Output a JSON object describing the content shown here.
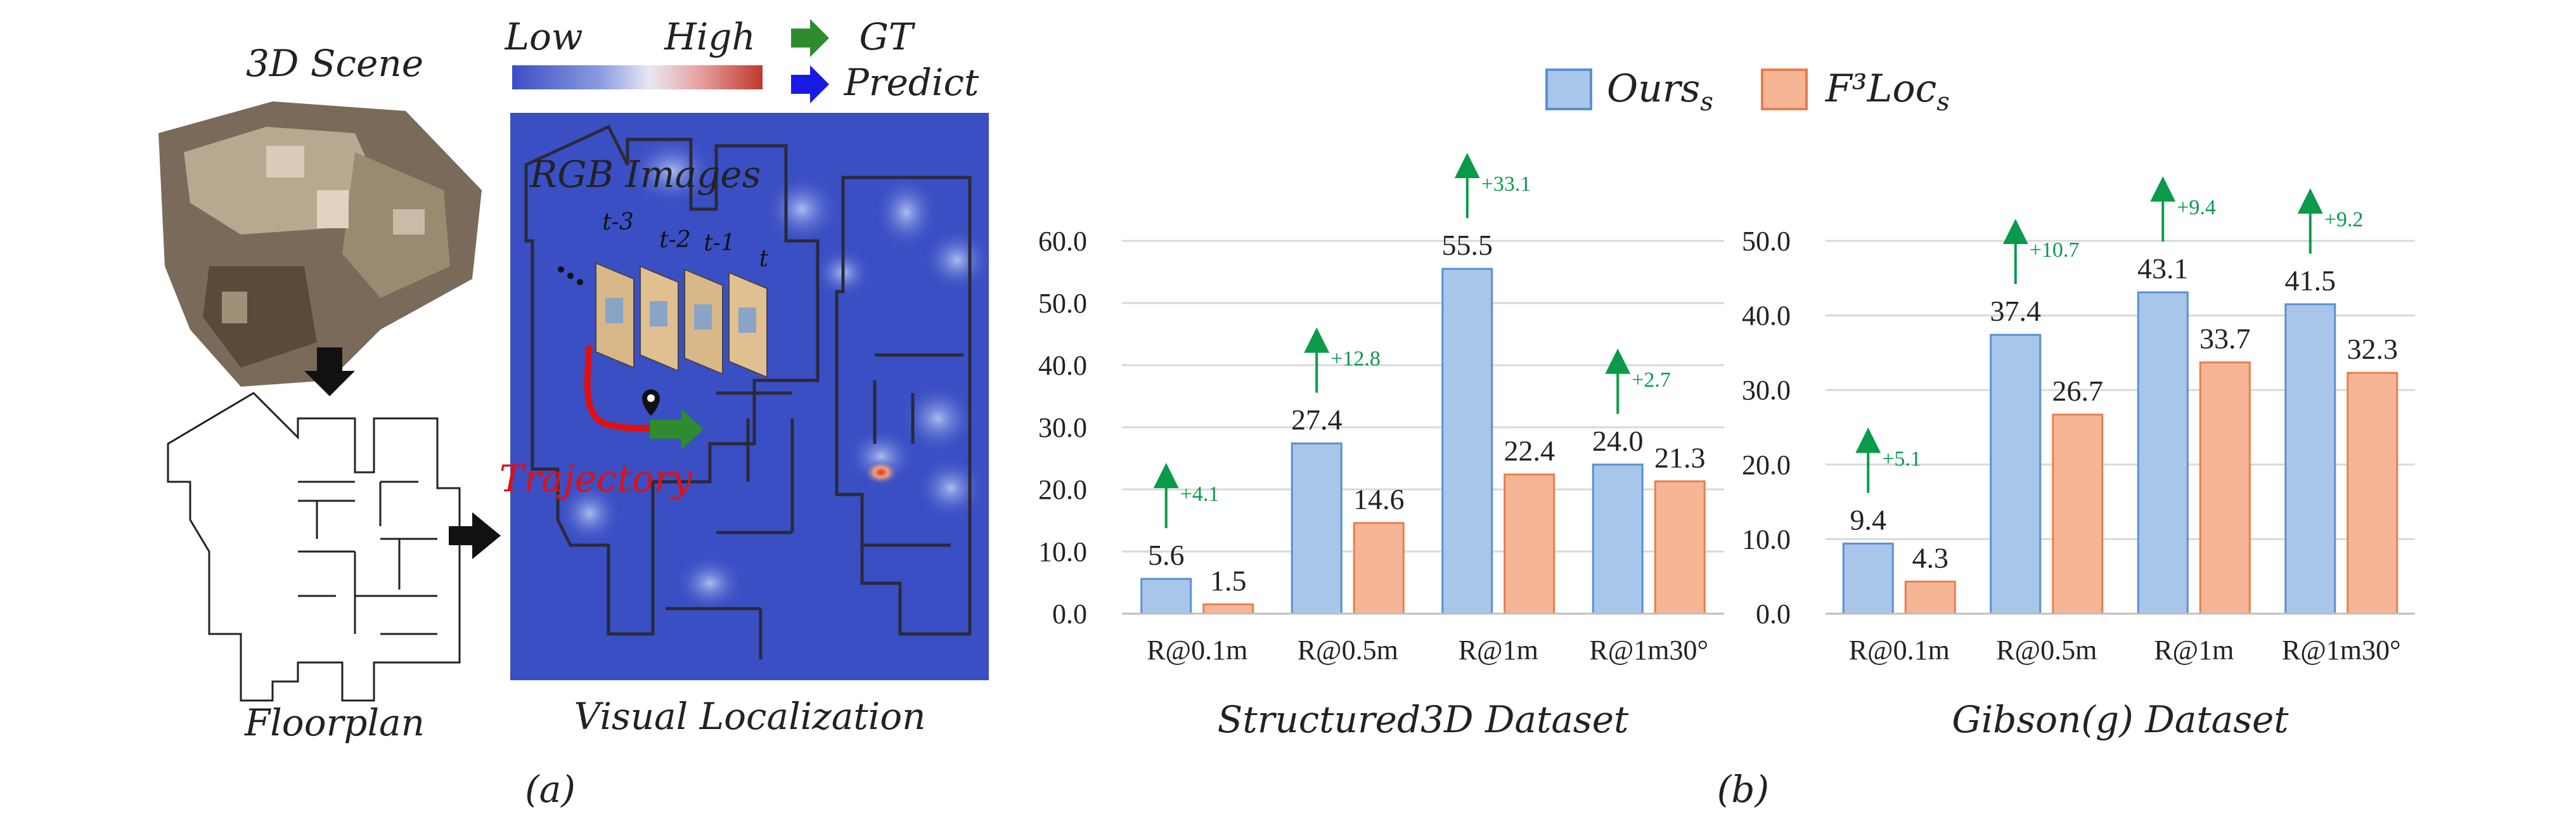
{
  "panel_a": {
    "scene_label": "3D Scene",
    "floorplan_label": "Floorplan",
    "localization_label": "Visual Localization",
    "legend_low": "Low",
    "legend_high": "High",
    "legend_gt": "GT",
    "legend_predict": "Predict",
    "rgb_images_label": "RGB Images",
    "frame_labels": [
      "t-3",
      "t-2",
      "t-1",
      "t"
    ],
    "trajectory_label": "Trajectory",
    "panel_label": "(a)",
    "colors": {
      "heat_low": "#3a4fc4",
      "heat_high": "#c0392b",
      "gt_arrow": "#2e8b2e",
      "predict_arrow": "#1a1ae6",
      "trajectory": "#e01010"
    }
  },
  "panel_b": {
    "legend": [
      "Ours",
      "F³Loc"
    ],
    "legend_subscript": "s",
    "panel_label": "(b)",
    "colors": {
      "ours_fill": "#a8c6ea",
      "ours_stroke": "#5b8fd1",
      "f3loc_fill": "#f6b595",
      "f3loc_stroke": "#e77f4c",
      "gain": "#0a9a4a"
    }
  },
  "chart_data": [
    {
      "type": "bar",
      "title": "Structured3D Dataset",
      "categories": [
        "R@0.1m",
        "R@0.5m",
        "R@1m",
        "R@1m30°"
      ],
      "series": [
        {
          "name": "Ours_s",
          "values": [
            5.6,
            27.4,
            55.5,
            24.0
          ]
        },
        {
          "name": "F³Loc_s",
          "values": [
            1.5,
            14.6,
            22.4,
            21.3
          ]
        }
      ],
      "gains": [
        "+4.1",
        "+12.8",
        "+33.1",
        "+2.7"
      ],
      "ylim": [
        0,
        60
      ],
      "yticks": [
        "0.0",
        "10.0",
        "20.0",
        "30.0",
        "40.0",
        "50.0",
        "60.0"
      ],
      "value_labels": [
        [
          "5.6",
          "27.4",
          "55.5",
          "24.0"
        ],
        [
          "1.5",
          "14.6",
          "22.4",
          "21.3"
        ]
      ]
    },
    {
      "type": "bar",
      "title": "Gibson(g) Dataset",
      "categories": [
        "R@0.1m",
        "R@0.5m",
        "R@1m",
        "R@1m30°"
      ],
      "series": [
        {
          "name": "Ours_s",
          "values": [
            9.4,
            37.4,
            43.1,
            41.5
          ]
        },
        {
          "name": "F³Loc_s",
          "values": [
            4.3,
            26.7,
            33.7,
            32.3
          ]
        }
      ],
      "gains": [
        "+5.1",
        "+10.7",
        "+9.4",
        "+9.2"
      ],
      "ylim": [
        0,
        50
      ],
      "yticks": [
        "0.0",
        "10.0",
        "20.0",
        "30.0",
        "40.0",
        "50.0"
      ],
      "value_labels": [
        [
          "9.4",
          "37.4",
          "43.1",
          "41.5"
        ],
        [
          "4.3",
          "26.7",
          "33.7",
          "32.3"
        ]
      ]
    }
  ]
}
